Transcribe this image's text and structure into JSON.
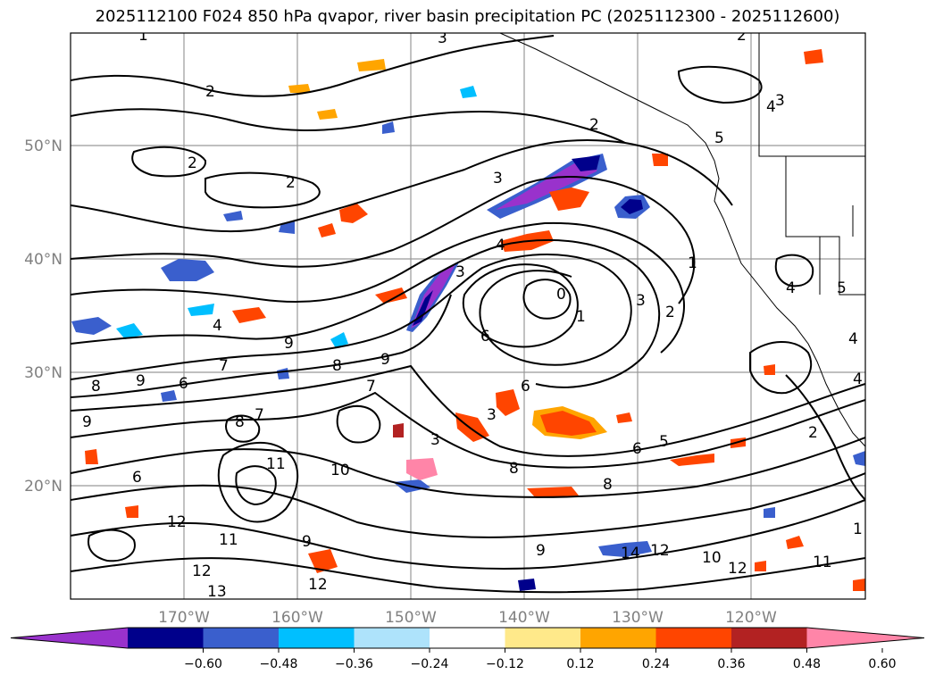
{
  "title": "2025112100 F024 850 hPa qvapor, river basin precipitation PC (2025112300 - 2025112600)",
  "lat_labels": [
    "50°N",
    "40°N",
    "30°N",
    "20°N"
  ],
  "lon_labels": [
    "170°W",
    "160°W",
    "150°W",
    "140°W",
    "130°W",
    "120°W"
  ],
  "colorbar": {
    "colors": [
      "#9932cc",
      "#00008b",
      "#3a5fcd",
      "#00bfff",
      "#aee3fb",
      "#ffffff",
      "#ffe98a",
      "#ffa500",
      "#ff4500",
      "#b22222",
      "#ff85a8"
    ],
    "tick_labels": [
      "−0.60",
      "−0.48",
      "−0.36",
      "−0.24",
      "−0.12",
      "0.12",
      "0.24",
      "0.36",
      "0.48",
      "0.60"
    ]
  },
  "contour_labels": [
    "1",
    "3",
    "2",
    "2",
    "3",
    "2",
    "2",
    "4",
    "3",
    "2",
    "5",
    "4",
    "3",
    "0",
    "1",
    "3",
    "2",
    "1",
    "4",
    "5",
    "4",
    "3",
    "6",
    "5",
    "4",
    "6",
    "7",
    "9",
    "8",
    "9",
    "8",
    "6",
    "7",
    "9",
    "8",
    "7",
    "6",
    "3",
    "8",
    "6",
    "9",
    "11",
    "10",
    "12",
    "11",
    "13",
    "12",
    "14",
    "12",
    "10",
    "12",
    "9",
    "8",
    "9",
    "11",
    "12",
    "1",
    "2",
    "4"
  ]
}
